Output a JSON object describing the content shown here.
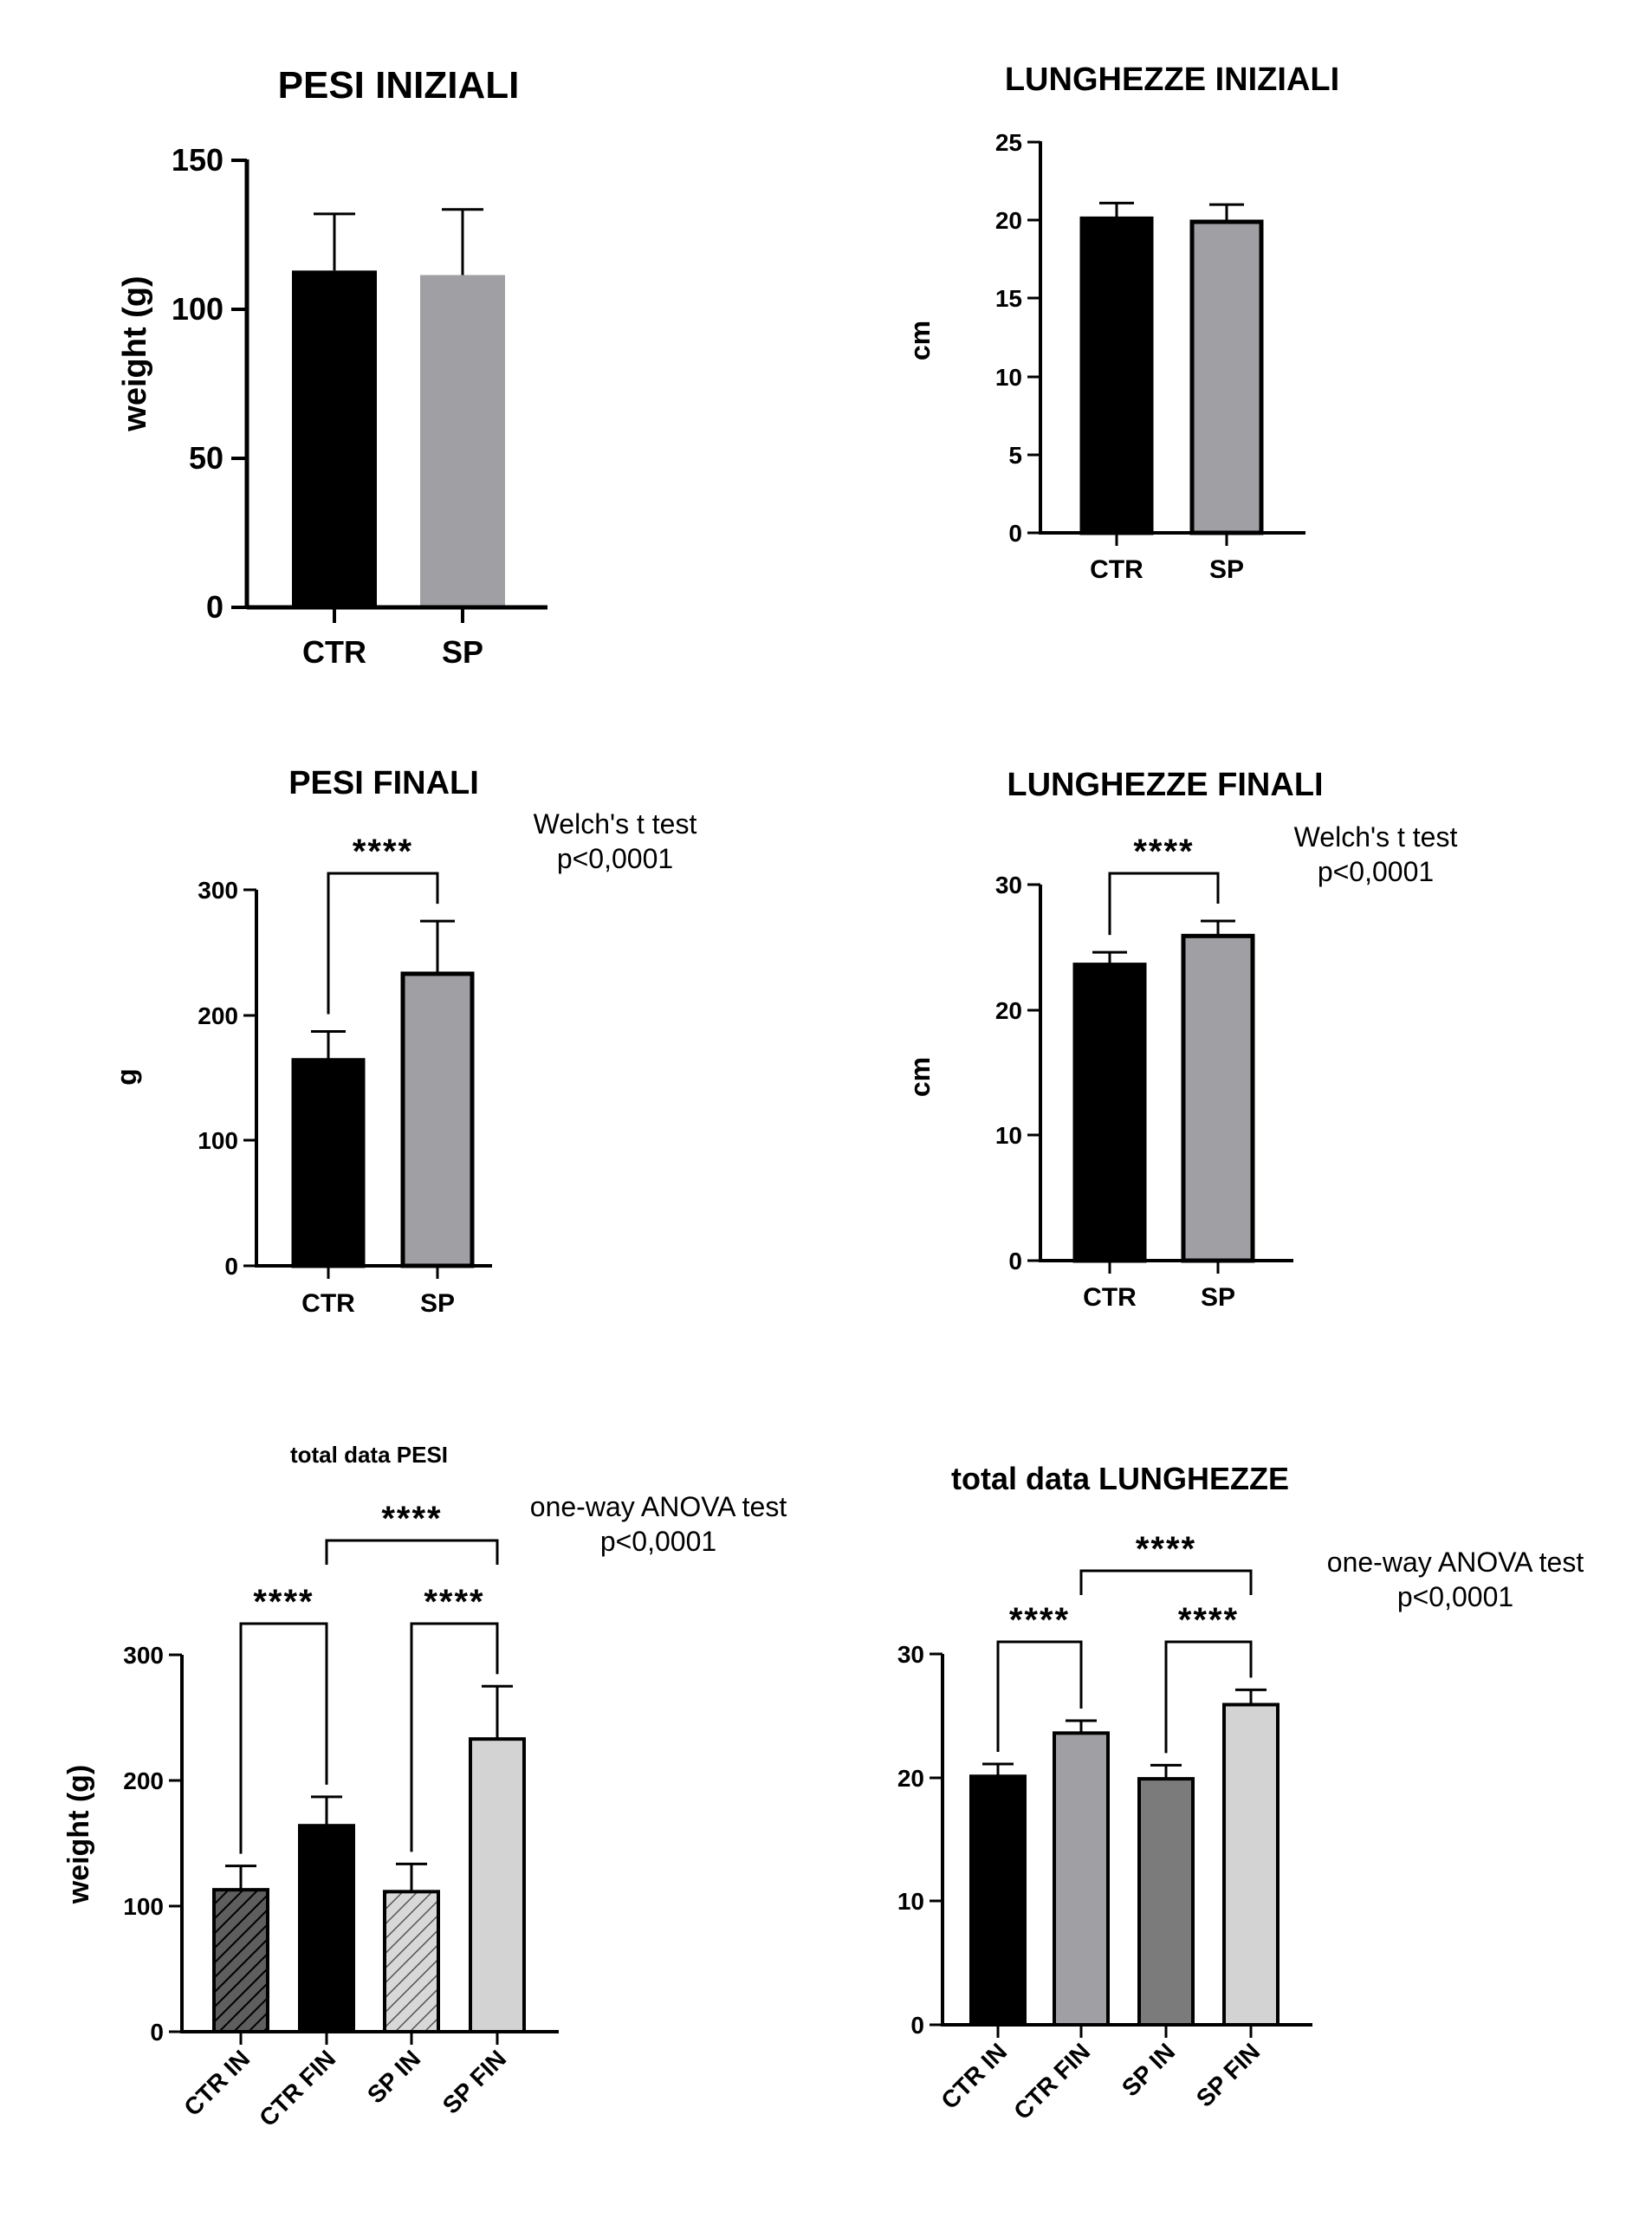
{
  "colors": {
    "black": "#000000",
    "gray": "#a0a0a4",
    "dark_gray": "#7b7b7b",
    "light_gray": "#d3d3d3",
    "hatch_dark": "#5e5e5e",
    "hatch_light": "#c8c8c8"
  },
  "chart_data": [
    {
      "id": "pesi_iniziali",
      "type": "bar",
      "title": "PESI INIZIALI",
      "ylabel": "weight (g)",
      "xlabel": "",
      "categories": [
        "CTR",
        "SP"
      ],
      "values": [
        113,
        111.5
      ],
      "errors": [
        19,
        22
      ],
      "fills": [
        "black",
        "gray"
      ],
      "borders": [
        false,
        false
      ],
      "ylim": [
        0,
        150
      ],
      "yticks": [
        "0",
        "50",
        "100",
        "150"
      ],
      "annotations": [],
      "brackets": []
    },
    {
      "id": "lunghezze_iniziali",
      "type": "bar",
      "title": "LUNGHEZZE INIZIALI",
      "ylabel": "cm",
      "xlabel": "",
      "categories": [
        "CTR",
        "SP"
      ],
      "values": [
        20.1,
        19.9
      ],
      "errors": [
        1.0,
        1.1
      ],
      "fills": [
        "black",
        "gray"
      ],
      "borders": [
        true,
        true
      ],
      "ylim": [
        0,
        25
      ],
      "yticks": [
        "0",
        "5",
        "10",
        "15",
        "20",
        "25"
      ],
      "annotations": [],
      "brackets": []
    },
    {
      "id": "pesi_finali",
      "type": "bar",
      "title": "PESI FINALI",
      "ylabel": "g",
      "xlabel": "",
      "categories": [
        "CTR",
        "SP"
      ],
      "values": [
        164,
        233
      ],
      "errors": [
        23,
        42
      ],
      "fills": [
        "black",
        "gray"
      ],
      "borders": [
        true,
        true
      ],
      "ylim": [
        0,
        300
      ],
      "yticks": [
        "0",
        "100",
        "200",
        "300"
      ],
      "annotations": [
        "Welch's t test",
        "p<0,0001"
      ],
      "brackets": [
        {
          "from": 0,
          "to": 1,
          "label": "****"
        }
      ]
    },
    {
      "id": "lunghezze_finali",
      "type": "bar",
      "title": "LUNGHEZZE FINALI",
      "ylabel": "cm",
      "xlabel": "",
      "categories": [
        "CTR",
        "SP"
      ],
      "values": [
        23.6,
        25.9
      ],
      "errors": [
        1.0,
        1.2
      ],
      "fills": [
        "black",
        "gray"
      ],
      "borders": [
        true,
        true
      ],
      "ylim": [
        0,
        30
      ],
      "yticks": [
        "0",
        "10",
        "20",
        "30"
      ],
      "annotations": [
        "Welch's t test",
        "p<0,0001"
      ],
      "brackets": [
        {
          "from": 0,
          "to": 1,
          "label": "****"
        }
      ]
    },
    {
      "id": "total_pesi",
      "type": "bar",
      "title": "total data PESI",
      "ylabel": "weight (g)",
      "xlabel": "",
      "categories": [
        "CTR IN",
        "CTR FIN",
        "SP IN",
        "SP FIN"
      ],
      "values": [
        113,
        164,
        111.5,
        233
      ],
      "errors": [
        19,
        23,
        22,
        42
      ],
      "fills": [
        "hatch_dark",
        "black",
        "hatch_light",
        "light_gray"
      ],
      "borders": [
        true,
        true,
        true,
        true
      ],
      "ylim": [
        0,
        300
      ],
      "yticks": [
        "0",
        "100",
        "200",
        "300"
      ],
      "annotations": [
        "one-way ANOVA test",
        "p<0,0001"
      ],
      "brackets": [
        {
          "from": 0,
          "to": 1,
          "label": "****",
          "level": 1
        },
        {
          "from": 2,
          "to": 3,
          "label": "****",
          "level": 1
        },
        {
          "from": 1,
          "to": 3,
          "label": "****",
          "level": 2
        }
      ]
    },
    {
      "id": "total_lunghezze",
      "type": "bar",
      "title": "total data LUNGHEZZE",
      "ylabel": "",
      "xlabel": "",
      "categories": [
        "CTR IN",
        "CTR FIN",
        "SP IN",
        "SP FIN"
      ],
      "values": [
        20.1,
        23.6,
        19.9,
        25.9
      ],
      "errors": [
        1.0,
        1.0,
        1.1,
        1.2
      ],
      "fills": [
        "black",
        "gray",
        "dark_gray",
        "light_gray"
      ],
      "borders": [
        true,
        true,
        true,
        true
      ],
      "ylim": [
        0,
        30
      ],
      "yticks": [
        "0",
        "10",
        "20",
        "30"
      ],
      "annotations": [
        "one-way ANOVA test",
        "p<0,0001"
      ],
      "brackets": [
        {
          "from": 0,
          "to": 1,
          "label": "****",
          "level": 1
        },
        {
          "from": 2,
          "to": 3,
          "label": "****",
          "level": 1
        },
        {
          "from": 1,
          "to": 3,
          "label": "****",
          "level": 2
        }
      ]
    }
  ]
}
